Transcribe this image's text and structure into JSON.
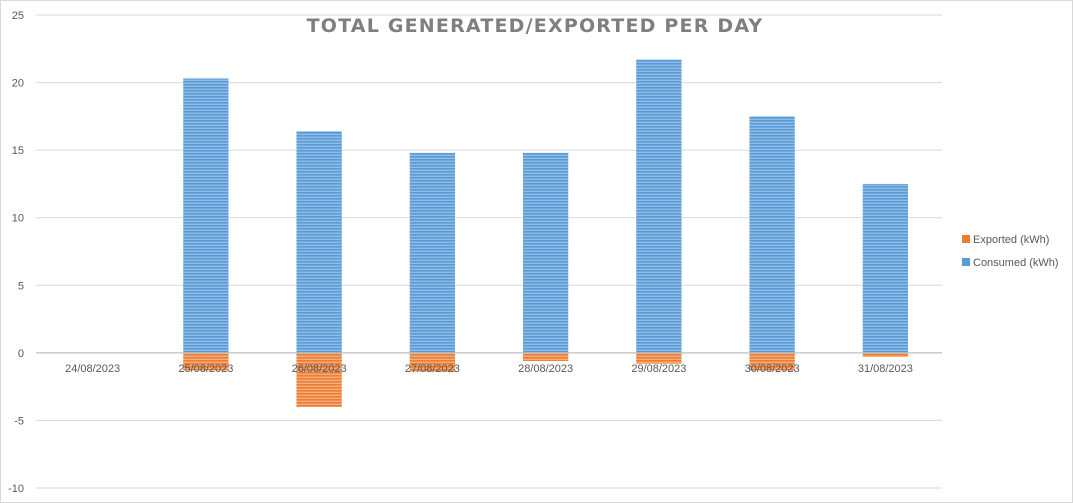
{
  "chart_data": {
    "type": "bar",
    "stacked": true,
    "title": "TOTAL GENERATED/EXPORTED PER DAY",
    "xlabel": "",
    "ylabel": "",
    "ylim": [
      -10,
      25
    ],
    "yticks": [
      25,
      20,
      15,
      10,
      5,
      0,
      -5,
      -10
    ],
    "grid": true,
    "legend_position": "right",
    "categories": [
      "24/08/2023",
      "25/08/2023",
      "26/08/2023",
      "27/08/2023",
      "28/08/2023",
      "29/08/2023",
      "30/08/2023",
      "31/08/2023"
    ],
    "series": [
      {
        "name": "Exported (kWh)",
        "color": "#ed7d31",
        "values": [
          0,
          -1.3,
          -4.0,
          -1.4,
          -0.6,
          -0.8,
          -1.3,
          -0.3
        ]
      },
      {
        "name": "Consumed (kWh)",
        "color": "#5b9bd5",
        "values": [
          0,
          20.3,
          16.4,
          14.8,
          14.8,
          21.7,
          17.5,
          12.5
        ]
      }
    ]
  }
}
